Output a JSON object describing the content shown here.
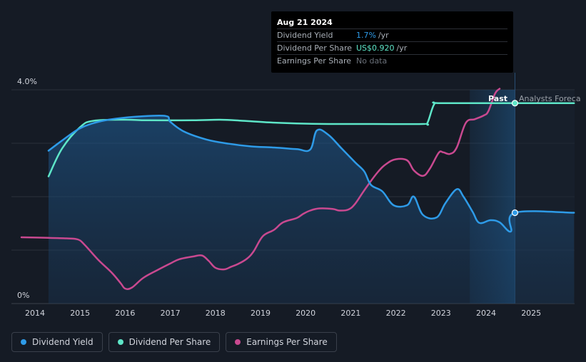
{
  "tooltip": {
    "date": "Aug 21 2024",
    "rows": [
      {
        "name": "Dividend Yield",
        "value": "1.7%",
        "unit": "/yr"
      },
      {
        "name": "Dividend Per Share",
        "value": "US$0.920",
        "unit": "/yr"
      },
      {
        "name": "Earnings Per Share",
        "value": "No data",
        "unit": ""
      }
    ]
  },
  "labels": {
    "past": "Past",
    "forecast": "Analysts Foreca"
  },
  "legend": [
    {
      "label": "Dividend Yield",
      "color": "#2e9be8"
    },
    {
      "label": "Dividend Per Share",
      "color": "#5ee6c8"
    },
    {
      "label": "Earnings Per Share",
      "color": "#c94990"
    }
  ],
  "chart_data": {
    "type": "line",
    "x_ticks": [
      "2014",
      "2015",
      "2016",
      "2017",
      "2018",
      "2019",
      "2020",
      "2021",
      "2022",
      "2023",
      "2024",
      "2025"
    ],
    "y_tick_labels": [
      "0%",
      "4.0%"
    ],
    "xlim": [
      2013.7,
      2025.95
    ],
    "ylim": [
      0,
      4.0
    ],
    "grid": true,
    "series": [
      {
        "name": "Dividend Yield",
        "unit": "%",
        "color": "#2e9be8",
        "points": [
          [
            2014.3,
            2.86
          ],
          [
            2014.6,
            3.05
          ],
          [
            2015.0,
            3.28
          ],
          [
            2015.4,
            3.4
          ],
          [
            2015.8,
            3.46
          ],
          [
            2016.3,
            3.5
          ],
          [
            2016.9,
            3.51
          ],
          [
            2017.0,
            3.4
          ],
          [
            2017.3,
            3.22
          ],
          [
            2017.8,
            3.07
          ],
          [
            2018.3,
            2.99
          ],
          [
            2018.8,
            2.94
          ],
          [
            2019.3,
            2.92
          ],
          [
            2019.8,
            2.89
          ],
          [
            2020.1,
            2.88
          ],
          [
            2020.25,
            3.24
          ],
          [
            2020.5,
            3.16
          ],
          [
            2020.8,
            2.9
          ],
          [
            2021.1,
            2.64
          ],
          [
            2021.3,
            2.47
          ],
          [
            2021.45,
            2.22
          ],
          [
            2021.7,
            2.1
          ],
          [
            2021.95,
            1.84
          ],
          [
            2022.25,
            1.84
          ],
          [
            2022.4,
            2.0
          ],
          [
            2022.6,
            1.66
          ],
          [
            2022.9,
            1.61
          ],
          [
            2023.1,
            1.88
          ],
          [
            2023.35,
            2.14
          ],
          [
            2023.5,
            2.0
          ],
          [
            2023.7,
            1.72
          ],
          [
            2023.85,
            1.51
          ],
          [
            2024.1,
            1.56
          ],
          [
            2024.3,
            1.52
          ],
          [
            2024.55,
            1.35
          ],
          [
            2024.64,
            1.7
          ],
          [
            2025.95,
            1.7
          ]
        ]
      },
      {
        "name": "Dividend Per Share",
        "unit": "US$",
        "color": "#5ee6c8",
        "points": [
          [
            2014.3,
            2.38
          ],
          [
            2014.6,
            2.9
          ],
          [
            2015.0,
            3.3
          ],
          [
            2015.3,
            3.42
          ],
          [
            2016.0,
            3.44
          ],
          [
            2016.5,
            3.43
          ],
          [
            2017.5,
            3.43
          ],
          [
            2018.1,
            3.44
          ],
          [
            2018.6,
            3.42
          ],
          [
            2019.2,
            3.39
          ],
          [
            2019.8,
            3.37
          ],
          [
            2020.5,
            3.36
          ],
          [
            2021.5,
            3.36
          ],
          [
            2022.6,
            3.36
          ],
          [
            2022.7,
            3.38
          ],
          [
            2022.85,
            3.73
          ],
          [
            2023.0,
            3.75
          ],
          [
            2024.64,
            3.75
          ],
          [
            2025.95,
            3.75
          ]
        ]
      },
      {
        "name": "Earnings Per Share",
        "unit": "US$",
        "color": "#c94990",
        "points": [
          [
            2013.7,
            1.24
          ],
          [
            2014.3,
            1.23
          ],
          [
            2014.7,
            1.22
          ],
          [
            2014.95,
            1.2
          ],
          [
            2015.1,
            1.1
          ],
          [
            2015.4,
            0.82
          ],
          [
            2015.7,
            0.58
          ],
          [
            2015.9,
            0.38
          ],
          [
            2016.0,
            0.28
          ],
          [
            2016.15,
            0.3
          ],
          [
            2016.4,
            0.48
          ],
          [
            2016.7,
            0.62
          ],
          [
            2017.0,
            0.75
          ],
          [
            2017.2,
            0.83
          ],
          [
            2017.5,
            0.88
          ],
          [
            2017.7,
            0.9
          ],
          [
            2017.85,
            0.8
          ],
          [
            2018.0,
            0.67
          ],
          [
            2018.2,
            0.64
          ],
          [
            2018.35,
            0.69
          ],
          [
            2018.5,
            0.74
          ],
          [
            2018.7,
            0.84
          ],
          [
            2018.85,
            0.98
          ],
          [
            2019.05,
            1.26
          ],
          [
            2019.3,
            1.38
          ],
          [
            2019.5,
            1.52
          ],
          [
            2019.8,
            1.6
          ],
          [
            2019.95,
            1.68
          ],
          [
            2020.1,
            1.74
          ],
          [
            2020.3,
            1.78
          ],
          [
            2020.6,
            1.77
          ],
          [
            2020.75,
            1.74
          ],
          [
            2020.95,
            1.76
          ],
          [
            2021.1,
            1.87
          ],
          [
            2021.3,
            2.12
          ],
          [
            2021.6,
            2.46
          ],
          [
            2021.8,
            2.62
          ],
          [
            2022.0,
            2.7
          ],
          [
            2022.25,
            2.68
          ],
          [
            2022.4,
            2.49
          ],
          [
            2022.6,
            2.39
          ],
          [
            2022.75,
            2.52
          ],
          [
            2022.95,
            2.82
          ],
          [
            2023.05,
            2.83
          ],
          [
            2023.2,
            2.8
          ],
          [
            2023.35,
            2.92
          ],
          [
            2023.55,
            3.38
          ],
          [
            2023.75,
            3.45
          ],
          [
            2023.95,
            3.52
          ],
          [
            2024.05,
            3.6
          ],
          [
            2024.2,
            3.93
          ],
          [
            2024.3,
            4.02
          ]
        ]
      }
    ],
    "markers": [
      {
        "series": "Dividend Yield",
        "x": 2024.64,
        "y": 1.7
      },
      {
        "series": "Dividend Per Share",
        "x": 2024.64,
        "y": 3.75
      }
    ],
    "past_forecast_divider_x": 2024.64,
    "highlight_range": [
      2023.64,
      2024.64
    ]
  }
}
